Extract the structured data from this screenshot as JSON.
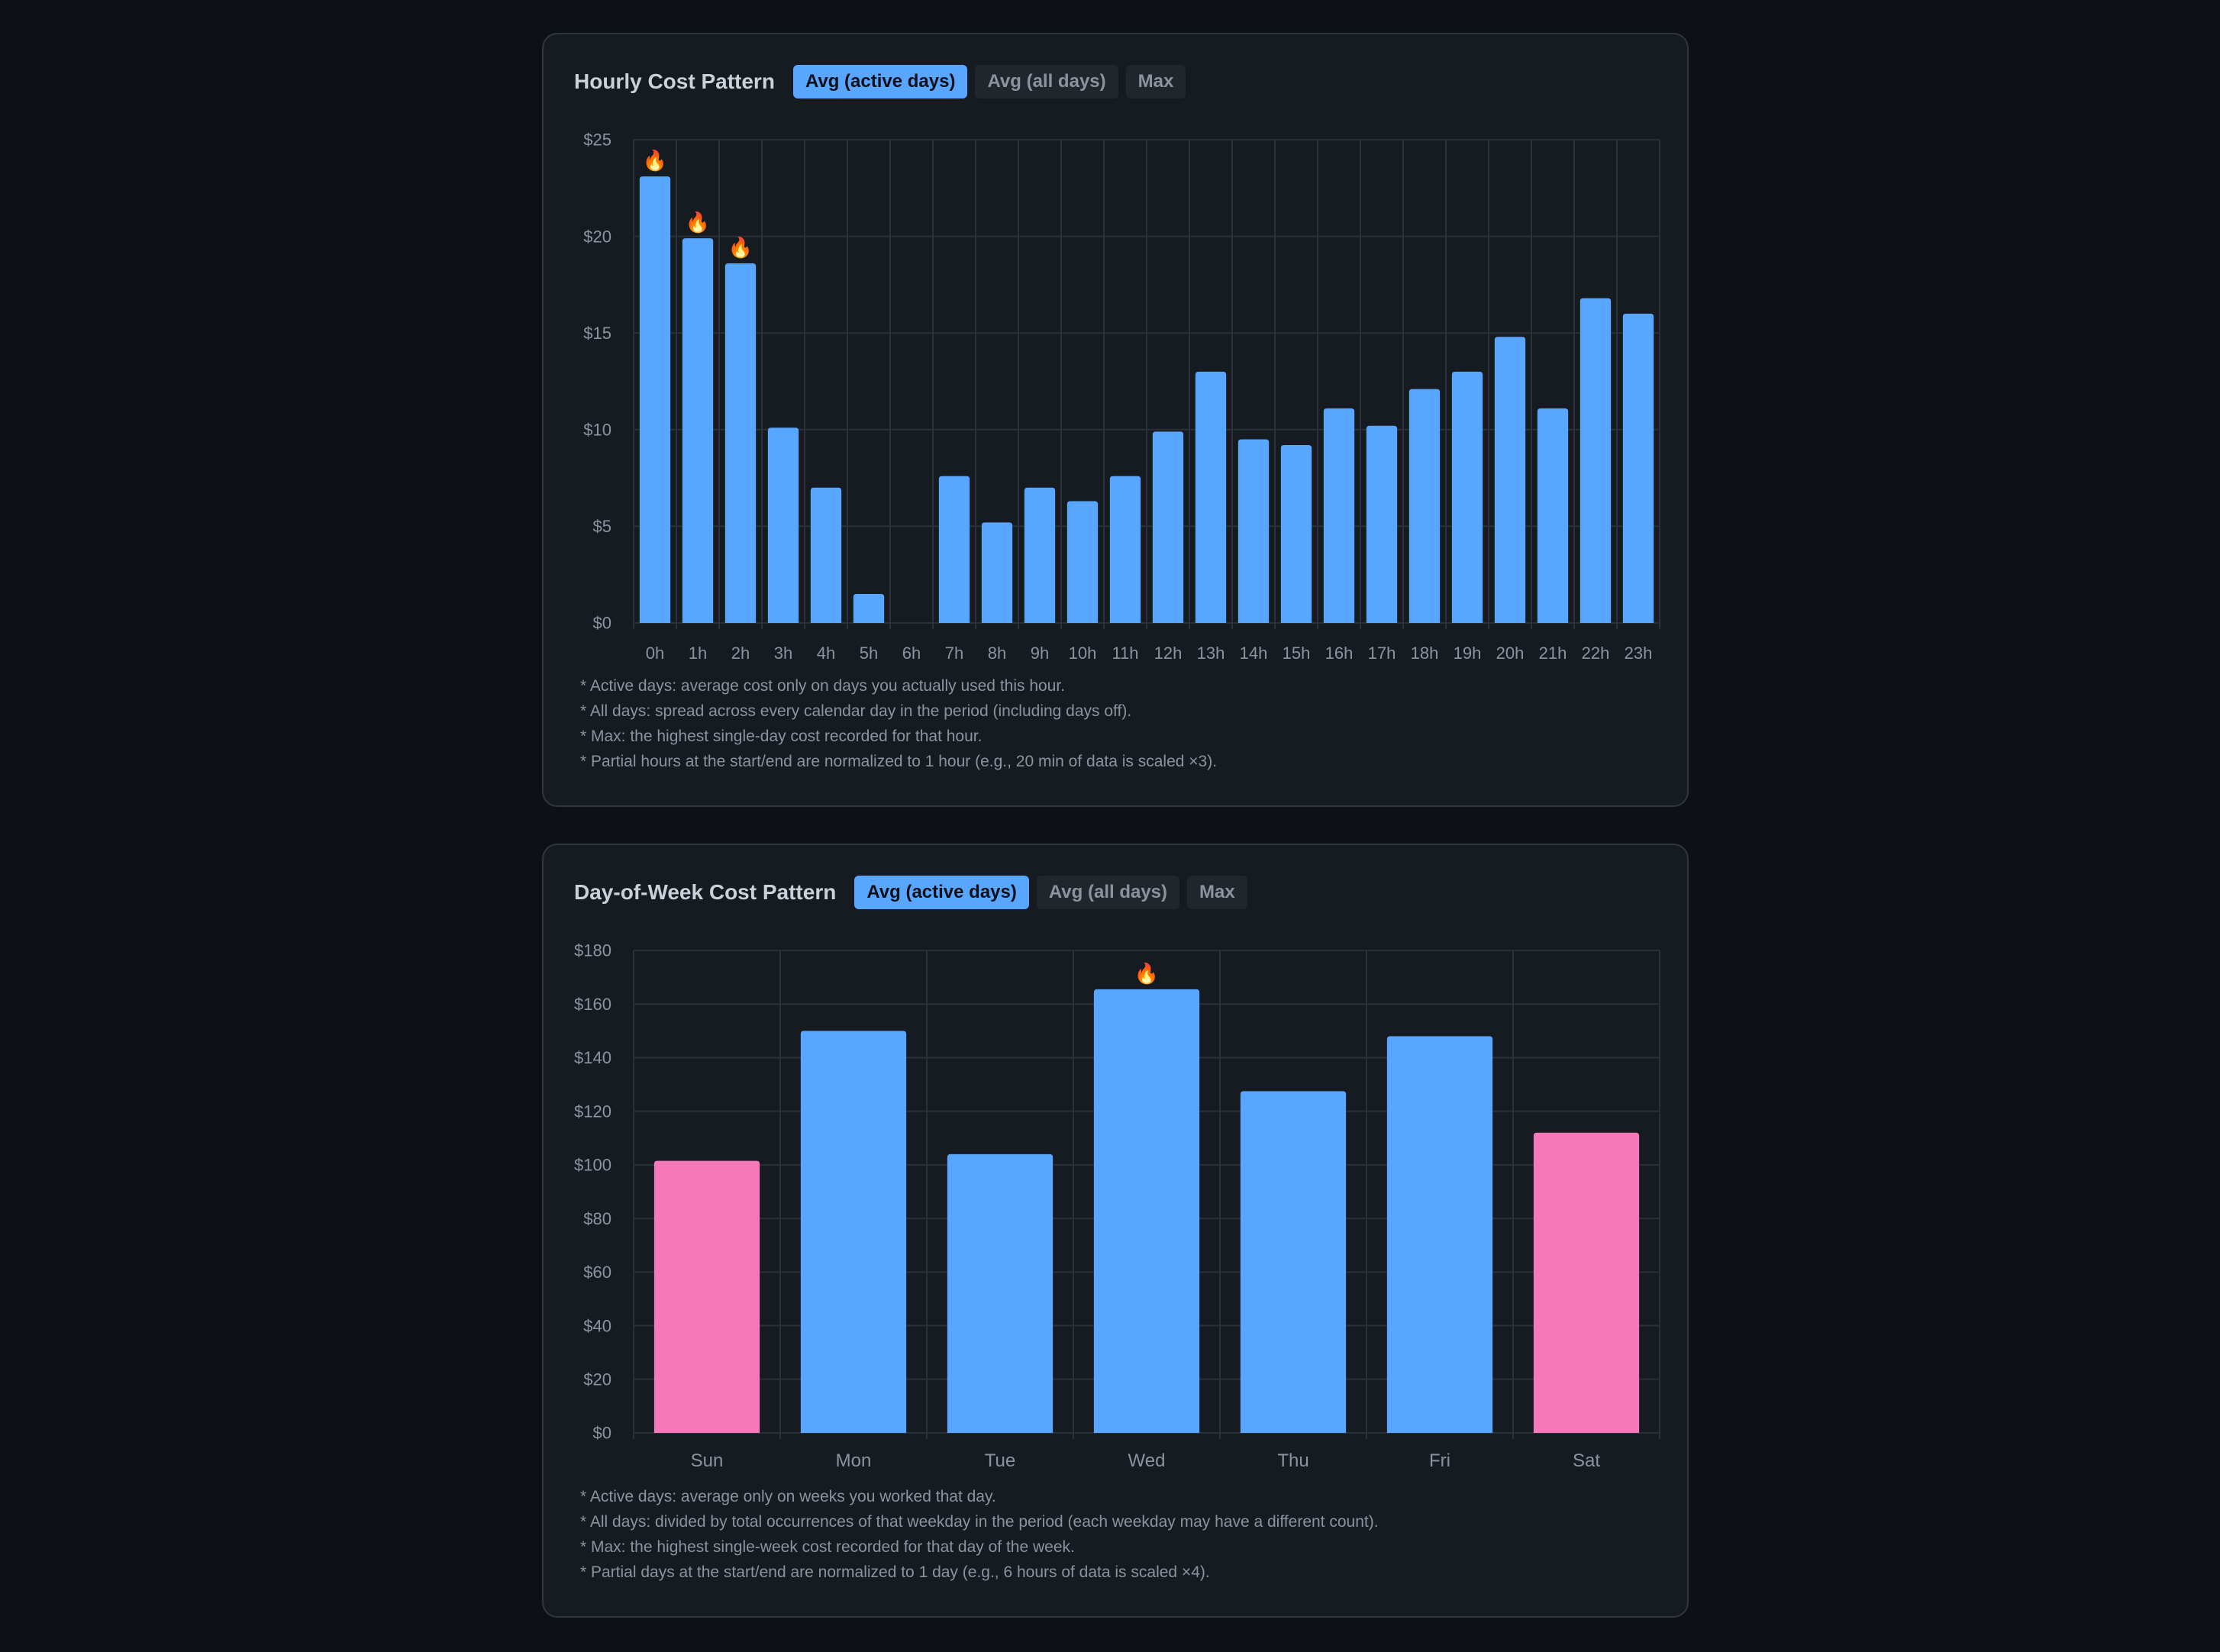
{
  "hourly": {
    "title": "Hourly Cost Pattern",
    "tabs": [
      "Avg (active days)",
      "Avg (all days)",
      "Max"
    ],
    "active_tab": 0,
    "notes": [
      "* Active days: average cost only on days you actually used this hour.",
      "* All days: spread across every calendar day in the period (including days off).",
      "* Max: the highest single-day cost recorded for that hour.",
      "* Partial hours at the start/end are normalized to 1 hour (e.g., 20 min of data is scaled ×3)."
    ]
  },
  "weekly": {
    "title": "Day-of-Week Cost Pattern",
    "tabs": [
      "Avg (active days)",
      "Avg (all days)",
      "Max"
    ],
    "active_tab": 0,
    "notes": [
      "* Active days: average only on weeks you worked that day.",
      "* All days: divided by total occurrences of that weekday in the period (each weekday may have a different count).",
      "* Max: the highest single-week cost recorded for that day of the week.",
      "* Partial days at the start/end are normalized to 1 day (e.g., 6 hours of data is scaled ×4)."
    ]
  },
  "chart_data": [
    {
      "type": "bar",
      "categories": [
        "0h",
        "1h",
        "2h",
        "3h",
        "4h",
        "5h",
        "6h",
        "7h",
        "8h",
        "9h",
        "10h",
        "11h",
        "12h",
        "13h",
        "14h",
        "15h",
        "16h",
        "17h",
        "18h",
        "19h",
        "20h",
        "21h",
        "22h",
        "23h"
      ],
      "values": [
        23.1,
        19.9,
        18.6,
        10.1,
        7.0,
        1.5,
        0,
        7.6,
        5.2,
        7.0,
        6.3,
        7.6,
        9.9,
        13.0,
        9.5,
        9.2,
        11.1,
        10.2,
        12.1,
        13.0,
        14.8,
        11.1,
        16.8,
        16.0
      ],
      "highlight": [
        true,
        true,
        true,
        false,
        false,
        false,
        false,
        false,
        false,
        false,
        false,
        false,
        false,
        false,
        false,
        false,
        false,
        false,
        false,
        false,
        false,
        false,
        false,
        false
      ],
      "highlight_marker": "🔥",
      "yticks": [
        "$0",
        "$5",
        "$10",
        "$15",
        "$20",
        "$25"
      ],
      "ylim": [
        0,
        25
      ],
      "ystep": 5,
      "grid": true,
      "colors": {
        "bar": "#58a6ff"
      },
      "xlabel": "",
      "ylabel": ""
    },
    {
      "type": "bar",
      "categories": [
        "Sun",
        "Mon",
        "Tue",
        "Wed",
        "Thu",
        "Fri",
        "Sat"
      ],
      "values": [
        101.5,
        150,
        104,
        165.5,
        127.5,
        148,
        112
      ],
      "highlight": [
        false,
        false,
        false,
        true,
        false,
        false,
        false
      ],
      "highlight_marker": "🔥",
      "weekend": [
        true,
        false,
        false,
        false,
        false,
        false,
        true
      ],
      "yticks": [
        "$0",
        "$20",
        "$40",
        "$60",
        "$80",
        "$100",
        "$120",
        "$140",
        "$160",
        "$180"
      ],
      "ylim": [
        0,
        180
      ],
      "ystep": 20,
      "grid": true,
      "colors": {
        "bar": "#58a6ff",
        "weekend_bar": "#f778ba"
      },
      "xlabel": "",
      "ylabel": ""
    }
  ]
}
